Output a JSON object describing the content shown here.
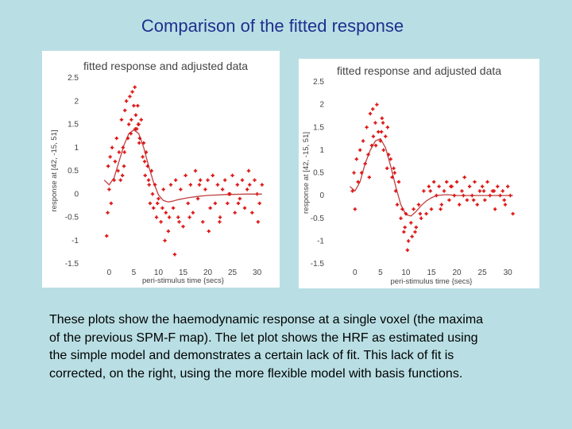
{
  "slide": {
    "title": "Comparison of the fitted response",
    "caption_lines": [
      "These plots show the haemodynamic response at a single voxel (the maxima",
      "of the previous SPM-F map). The let plot shows the HRF as estimated using",
      "the simple model and demonstrates a certain lack of fit. This lack of fit is",
      "corrected, on the right, using the more flexible model with basis functions."
    ]
  },
  "chart_data": [
    {
      "type": "scatter",
      "title": "fitted response and adjusted data",
      "xlabel": "peri-stimulus time {secs}",
      "ylabel": "response at [42, -15, 51]",
      "xlim": [
        -2,
        32
      ],
      "ylim": [
        -1.5,
        2.5
      ],
      "xticks": [
        "0",
        "5",
        "10",
        "15",
        "20",
        "25",
        "30"
      ],
      "yticks": [
        "2.5",
        "2",
        "1.5",
        "1",
        "0.5",
        "0",
        "-0.5",
        "-1",
        "-1.5"
      ],
      "grid": false,
      "colors": {
        "points": "#dd1111",
        "fit": "#c04040"
      },
      "series": [
        {
          "kind": "fitted",
          "x": [
            -1,
            0,
            1,
            2,
            3,
            4,
            5,
            6,
            7,
            8,
            9,
            10,
            11,
            12,
            13,
            14,
            16,
            18,
            20,
            24,
            28,
            31
          ],
          "y": [
            0.3,
            0.2,
            0.35,
            0.7,
            1.05,
            1.3,
            1.38,
            1.3,
            1.0,
            0.6,
            0.25,
            -0.02,
            -0.14,
            -0.17,
            -0.15,
            -0.12,
            -0.08,
            -0.05,
            -0.03,
            -0.01,
            0.0,
            0.0
          ]
        },
        {
          "kind": "points",
          "x": [
            -0.5,
            -0.3,
            -0.2,
            0,
            0.2,
            0.4,
            0.6,
            1,
            1.2,
            1.5,
            1.8,
            2.0,
            2.3,
            2.5,
            2.8,
            3.0,
            3.2,
            3.5,
            3.8,
            4.0,
            4.2,
            4.5,
            4.7,
            5.0,
            5.2,
            5.4,
            5.6,
            5.8,
            6.0,
            6.2,
            6.5,
            6.8,
            7.0,
            7.3,
            7.5,
            7.8,
            8.0,
            8.3,
            8.6,
            9.0,
            9.3,
            9.6,
            10,
            10.5,
            11,
            11.5,
            12,
            12.5,
            13,
            13.5,
            14,
            14.5,
            15,
            15.5,
            16,
            16.5,
            17,
            17.5,
            18,
            18.5,
            19,
            19.5,
            20,
            20.5,
            21,
            21.5,
            22,
            22.5,
            23,
            23.5,
            24,
            24.5,
            25,
            25.5,
            26,
            26.5,
            27,
            27.5,
            28,
            28.5,
            29,
            29.5,
            30,
            30.5,
            31,
            3.1,
            4.4,
            5.3,
            6.1,
            7.2,
            8.8,
            9.8,
            10.8,
            12.2,
            14.2,
            16.3,
            18.3,
            20.2,
            22.4,
            24.3,
            26.2,
            28.3,
            30.2,
            2.7,
            5.9,
            8.1,
            11.3,
            13.3
          ],
          "y": [
            -0.9,
            -0.4,
            0.6,
            0.1,
            0.8,
            -0.2,
            1.0,
            0.3,
            0.7,
            1.2,
            0.5,
            0.9,
            0.3,
            1.6,
            1.0,
            0.6,
            1.8,
            2.0,
            1.2,
            1.5,
            2.1,
            1.6,
            2.2,
            1.9,
            2.3,
            1.7,
            1.4,
            1.9,
            1.5,
            1.2,
            1.6,
            0.8,
            1.1,
            0.4,
            0.9,
            0.6,
            0.3,
            -0.2,
            0.5,
            -0.3,
            0.2,
            -0.5,
            -0.1,
            -0.6,
            0.1,
            -0.4,
            -0.8,
            0.2,
            -0.3,
            0.3,
            -0.5,
            0.1,
            -0.7,
            0.4,
            -0.2,
            0.2,
            -0.4,
            0.5,
            -0.1,
            0.3,
            -0.6,
            0.1,
            0.3,
            -0.3,
            0.4,
            -0.2,
            0.2,
            -0.5,
            0.1,
            0.3,
            -0.2,
            0.0,
            0.4,
            -0.4,
            0.2,
            -0.1,
            0.3,
            -0.3,
            0.1,
            0.2,
            -0.4,
            0.3,
            0.0,
            -0.2,
            0.2,
            0.9,
            1.3,
            1.4,
            1.1,
            0.7,
            0.0,
            -0.2,
            -0.3,
            -0.5,
            -0.6,
            -0.5,
            0.2,
            -0.8,
            -0.6,
            0.0,
            -0.2,
            0.5,
            -0.6,
            0.4,
            1.5,
            0.2,
            -1.0,
            -1.3
          ]
        }
      ]
    },
    {
      "type": "scatter",
      "title": "fitted response and adjusted data",
      "xlabel": "peri-stimulus time {secs}",
      "ylabel": "response at [42, -15, 51]",
      "xlim": [
        -2,
        32
      ],
      "ylim": [
        -1.5,
        2.5
      ],
      "xticks": [
        "0",
        "5",
        "10",
        "15",
        "20",
        "25",
        "30"
      ],
      "yticks": [
        "2.5",
        "2",
        "1.5",
        "1",
        "0.5",
        "0",
        "-0.5",
        "-1",
        "-1.5"
      ],
      "grid": false,
      "colors": {
        "points": "#dd1111",
        "fit": "#c04040"
      },
      "series": [
        {
          "kind": "fitted",
          "x": [
            -1,
            0,
            1,
            2,
            3,
            4,
            5,
            6,
            7,
            8,
            9,
            10,
            11,
            12,
            13,
            14,
            15,
            16,
            18,
            20,
            24,
            28,
            31
          ],
          "y": [
            0.2,
            0.1,
            0.3,
            0.7,
            1.0,
            1.2,
            1.25,
            1.05,
            0.65,
            0.2,
            -0.2,
            -0.42,
            -0.45,
            -0.35,
            -0.22,
            -0.12,
            -0.05,
            0.0,
            0.02,
            0.0,
            0.0,
            0.0,
            0.0
          ]
        },
        {
          "kind": "points",
          "x": [
            -0.5,
            -0.2,
            0,
            0.3,
            0.6,
            1.0,
            1.3,
            1.6,
            2.0,
            2.3,
            2.6,
            3.0,
            3.3,
            3.6,
            4.0,
            4.3,
            4.6,
            5.0,
            5.3,
            5.6,
            6.0,
            6.3,
            6.6,
            7.0,
            7.3,
            7.6,
            8.0,
            8.3,
            8.6,
            9.0,
            9.3,
            9.6,
            10,
            10.5,
            11,
            11.5,
            12,
            12.5,
            13,
            13.5,
            14,
            14.5,
            15,
            15.5,
            16,
            16.5,
            17,
            17.5,
            18,
            18.5,
            19,
            19.5,
            20,
            20.5,
            21,
            21.5,
            22,
            22.5,
            23,
            23.5,
            24,
            24.5,
            25,
            25.5,
            26,
            26.5,
            27,
            27.5,
            28,
            28.5,
            29,
            29.5,
            30,
            30.5,
            31,
            2.8,
            4.1,
            5.2,
            6.4,
            7.8,
            9.8,
            11.2,
            12.8,
            14.8,
            16.8,
            18.8,
            21.3,
            23.3,
            25.3,
            27.3,
            29.3,
            3.5,
            5.5,
            10.3,
            11.8
          ],
          "y": [
            0.1,
            0.5,
            -0.3,
            0.8,
            0.3,
            1.0,
            0.5,
            1.2,
            0.7,
            1.5,
            0.9,
            1.8,
            1.1,
            1.3,
            1.6,
            2.0,
            1.4,
            1.2,
            1.7,
            1.0,
            1.3,
            0.6,
            0.9,
            0.8,
            0.4,
            0.6,
            0.1,
            -0.2,
            0.3,
            -0.5,
            -0.3,
            -0.8,
            -0.4,
            -1.0,
            -0.6,
            -0.3,
            -0.7,
            -0.2,
            -0.5,
            0.1,
            -0.4,
            0.2,
            -0.3,
            0.3,
            0.0,
            0.2,
            -0.2,
            0.1,
            0.3,
            -0.1,
            0.2,
            0.0,
            0.3,
            -0.2,
            0.1,
            0.4,
            -0.1,
            0.2,
            0.0,
            0.3,
            -0.2,
            0.1,
            0.2,
            -0.1,
            0.3,
            0.0,
            0.1,
            -0.3,
            0.2,
            0.0,
            0.1,
            -0.2,
            0.2,
            0.0,
            -0.4,
            0.4,
            1.1,
            1.4,
            1.5,
            0.5,
            -0.7,
            -0.9,
            -0.4,
            0.1,
            -0.3,
            0.2,
            0.0,
            -0.1,
            0.1,
            0.1,
            -0.1,
            1.9,
            1.6,
            -1.2,
            -0.8
          ]
        }
      ]
    }
  ]
}
